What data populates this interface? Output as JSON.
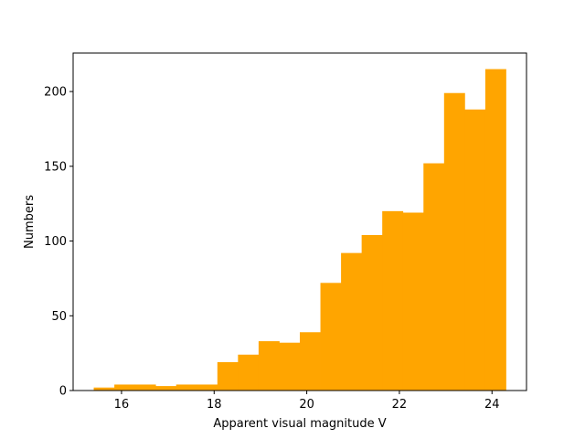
{
  "chart_data": {
    "type": "bar",
    "histogram": true,
    "bin_edges": [
      15.4,
      15.845,
      16.29,
      16.735,
      17.18,
      17.625,
      18.07,
      18.515,
      18.96,
      19.405,
      19.85,
      20.295,
      20.74,
      21.185,
      21.63,
      22.075,
      22.52,
      22.965,
      23.41,
      23.855,
      24.3
    ],
    "values": [
      2,
      4,
      4,
      3,
      4,
      4,
      19,
      24,
      33,
      32,
      39,
      72,
      92,
      104,
      120,
      119,
      152,
      199,
      188,
      215
    ],
    "color": "#ffa500",
    "xlabel": "Apparent visual magnitude V",
    "ylabel": "Numbers",
    "xlim": [
      14.955,
      24.745
    ],
    "ylim": [
      0,
      225.75
    ],
    "xticks": [
      16,
      18,
      20,
      22,
      24
    ],
    "yticks": [
      0,
      50,
      100,
      150,
      200
    ],
    "grid": false
  }
}
